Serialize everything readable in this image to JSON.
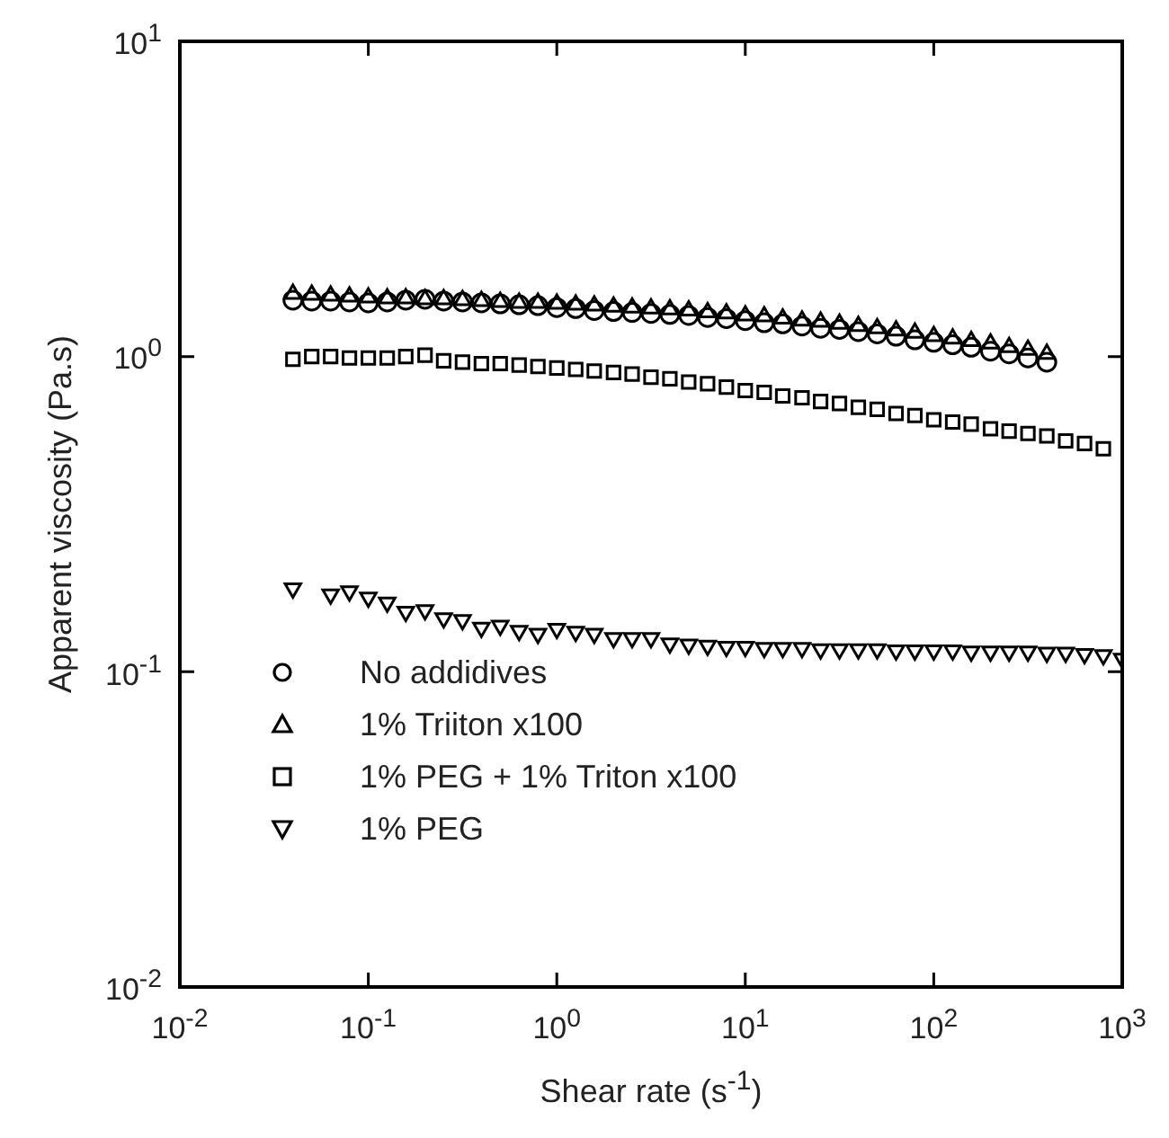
{
  "chart_data": {
    "type": "scatter",
    "xlabel": "Shear rate (s$^{-1}$)",
    "ylabel": "Apparent viscosity (Pa.s)",
    "log": "xy",
    "grid": false,
    "legend": "bottom left",
    "xlim": [
      0.01,
      1000
    ],
    "ylim": [
      0.01,
      10
    ],
    "xticks": [
      {
        "value": 0.01,
        "label": "10$^{-2}$"
      },
      {
        "value": 0.1,
        "label": "10$^{-1}$"
      },
      {
        "value": 1,
        "label": "10$^{0}$"
      },
      {
        "value": 10,
        "label": "10$^{1}$"
      },
      {
        "value": 100,
        "label": "10$^{2}$"
      },
      {
        "value": 1000,
        "label": "10$^{3}$"
      }
    ],
    "yticks": [
      {
        "value": 0.01,
        "label": "10$^{-2}$"
      },
      {
        "value": 0.1,
        "label": "10$^{-1}$"
      },
      {
        "value": 1,
        "label": "10$^{0}$"
      },
      {
        "value": 10,
        "label": "10$^{1}$"
      }
    ],
    "x": [
      0.0398,
      0.0501,
      0.0631,
      0.0794,
      0.1,
      0.126,
      0.158,
      0.2,
      0.251,
      0.316,
      0.398,
      0.501,
      0.631,
      0.794,
      1,
      1.26,
      1.58,
      2,
      2.51,
      3.16,
      3.98,
      5.01,
      6.31,
      7.94,
      10,
      12.6,
      15.8,
      20,
      25.1,
      31.6,
      39.8,
      50.1,
      63.1,
      79.4,
      100,
      126,
      158,
      200,
      251,
      316,
      398,
      501,
      631,
      794,
      1000
    ],
    "series": [
      {
        "name": "No addidives",
        "color": "#000000",
        "marker": "circle",
        "values": [
          1.51,
          1.5,
          1.5,
          1.49,
          1.48,
          1.49,
          1.51,
          1.52,
          1.5,
          1.49,
          1.48,
          1.47,
          1.46,
          1.45,
          1.43,
          1.42,
          1.4,
          1.39,
          1.38,
          1.37,
          1.36,
          1.35,
          1.33,
          1.32,
          1.3,
          1.28,
          1.27,
          1.25,
          1.23,
          1.22,
          1.2,
          1.18,
          1.16,
          1.13,
          1.11,
          1.09,
          1.07,
          1.04,
          1.02,
          0.99,
          0.96,
          null,
          null,
          null,
          null
        ]
      },
      {
        "name": "1% Triiton x100",
        "color": "#000000",
        "marker": "triangle",
        "values": [
          1.58,
          1.57,
          1.56,
          1.55,
          1.54,
          1.53,
          1.53,
          1.52,
          1.52,
          1.51,
          1.5,
          1.49,
          1.48,
          1.48,
          1.47,
          1.46,
          1.45,
          1.44,
          1.43,
          1.42,
          1.41,
          1.4,
          1.38,
          1.37,
          1.35,
          1.34,
          1.32,
          1.3,
          1.29,
          1.27,
          1.25,
          1.23,
          1.21,
          1.19,
          1.16,
          1.14,
          1.12,
          1.1,
          1.07,
          1.05,
          1.02,
          null,
          null,
          null,
          null
        ]
      },
      {
        "name": "1% PEG + 1% Triton x100",
        "color": "#000000",
        "marker": "square",
        "values": [
          0.98,
          1.0,
          1.0,
          0.99,
          0.99,
          0.99,
          1.0,
          1.01,
          0.97,
          0.96,
          0.95,
          0.95,
          0.94,
          0.93,
          0.92,
          0.91,
          0.9,
          0.89,
          0.88,
          0.86,
          0.85,
          0.83,
          0.82,
          0.8,
          0.78,
          0.77,
          0.75,
          0.74,
          0.72,
          0.71,
          0.69,
          0.68,
          0.66,
          0.65,
          0.63,
          0.62,
          0.61,
          0.59,
          0.58,
          0.57,
          0.56,
          0.54,
          0.53,
          0.51,
          null
        ]
      },
      {
        "name": "1% PEG",
        "color": "#000000",
        "marker": "triangle-down",
        "values": [
          0.184,
          null,
          0.176,
          0.18,
          0.172,
          0.166,
          0.155,
          0.157,
          0.148,
          0.146,
          0.138,
          0.14,
          0.135,
          0.132,
          0.137,
          0.134,
          0.132,
          0.128,
          0.128,
          0.128,
          0.123,
          0.122,
          0.121,
          0.12,
          0.12,
          0.119,
          0.119,
          0.119,
          0.118,
          0.118,
          0.118,
          0.118,
          0.117,
          0.117,
          0.117,
          0.117,
          0.116,
          0.116,
          0.116,
          0.116,
          0.115,
          0.115,
          0.114,
          0.113,
          0.11
        ]
      }
    ]
  }
}
